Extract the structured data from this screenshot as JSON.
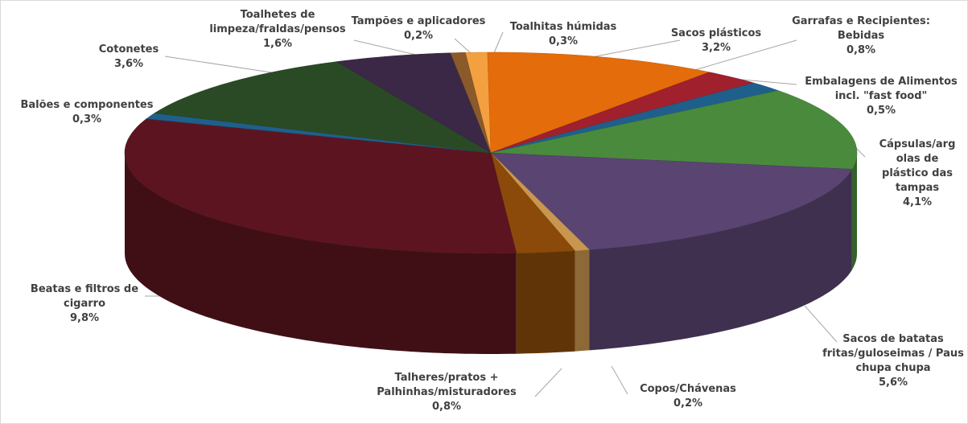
{
  "chart_data": {
    "type": "pie3d",
    "categories": [
      [
        "Toalhitas húmidas"
      ],
      [
        "Sacos plásticos"
      ],
      [
        "Garrafas e Recipientes:",
        "Bebidas"
      ],
      [
        "Embalagens de Alimentos",
        "incl. \"fast food\""
      ],
      [
        "Cápsulas/arg",
        "olas de",
        "plástico das",
        "tampas"
      ],
      [
        "Sacos de batatas",
        "fritas/guloseimas / Paus",
        "chupa chupa"
      ],
      [
        "Copos/Chávenas"
      ],
      [
        "Talheres/pratos +",
        "Palhinhas/misturadores"
      ],
      [
        "Beatas e filtros de",
        "cigarro"
      ],
      [
        "Balões e componentes"
      ],
      [
        "Cotonetes"
      ],
      [
        "Toalhetes de",
        "limpeza/fraldas/pensos"
      ],
      [
        "Tampões e aplicadores"
      ]
    ],
    "values": [
      0.3,
      3.2,
      0.8,
      0.5,
      4.1,
      5.6,
      0.2,
      0.8,
      9.8,
      0.3,
      3.6,
      1.6,
      0.2
    ],
    "value_labels": [
      "0,3%",
      "3,2%",
      "0,8%",
      "0,5%",
      "4,1%",
      "5,6%",
      "0,2%",
      "0,8%",
      "9,8%",
      "0,3%",
      "3,6%",
      "1,6%",
      "0,2%"
    ],
    "colors": [
      "#f4a040",
      "#e46c0a",
      "#a0202e",
      "#1f5f8b",
      "#4a8a3c",
      "#5a4472",
      "#c8964e",
      "#8b4a0a",
      "#5c1520",
      "#1f5f8b",
      "#2a4a26",
      "#3a2846",
      "#8b5a2a"
    ]
  }
}
